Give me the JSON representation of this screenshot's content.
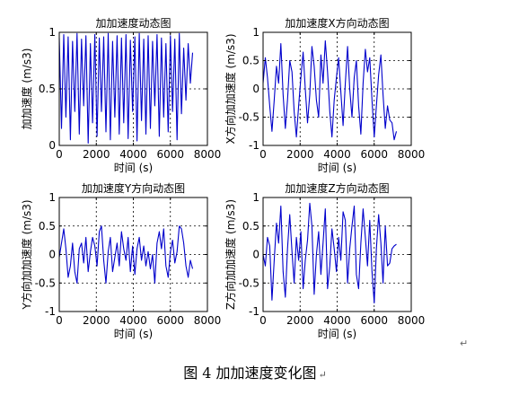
{
  "caption": {
    "text": "图 4  加加速度变化图",
    "return_mark": "↵"
  },
  "margin_mark": "↵",
  "chart_data": [
    {
      "type": "line",
      "title": "加加速度动态图",
      "xlabel": "时间 (s)",
      "ylabel": "加加速度 (m/s3)",
      "xlim": [
        0,
        8000
      ],
      "ylim": [
        0,
        1
      ],
      "xticks": [
        0,
        2000,
        4000,
        6000,
        8000
      ],
      "yticks": [
        0,
        0.5,
        1
      ],
      "ytick_labels": [
        "0",
        "0.5",
        "1"
      ],
      "grid": true,
      "color": "#0000cc",
      "x": [
        0,
        120,
        240,
        360,
        480,
        600,
        720,
        840,
        960,
        1080,
        1200,
        1320,
        1440,
        1560,
        1680,
        1800,
        1920,
        2040,
        2160,
        2280,
        2400,
        2520,
        2640,
        2760,
        2880,
        3000,
        3120,
        3240,
        3360,
        3480,
        3600,
        3720,
        3840,
        3960,
        4080,
        4200,
        4320,
        4440,
        4560,
        4680,
        4800,
        4920,
        5040,
        5160,
        5280,
        5400,
        5520,
        5640,
        5760,
        5880,
        6000,
        6120,
        6240,
        6360,
        6480,
        6600,
        6720,
        6840,
        6960,
        7080,
        7200
      ],
      "y": [
        0.95,
        0.15,
        0.98,
        0.25,
        0.96,
        0.05,
        0.92,
        0.3,
        0.99,
        0.1,
        0.94,
        0.35,
        0.97,
        0.02,
        0.9,
        0.2,
        0.98,
        0.08,
        0.95,
        0.3,
        0.96,
        0.12,
        0.99,
        0.05,
        0.92,
        0.25,
        0.97,
        0.1,
        0.95,
        0.2,
        0.98,
        0.06,
        0.93,
        0.3,
        0.96,
        0.04,
        0.99,
        0.22,
        0.94,
        0.1,
        0.97,
        0.15,
        0.92,
        0.35,
        0.98,
        0.08,
        0.95,
        0.25,
        0.9,
        0.12,
        0.97,
        0.3,
        0.94,
        0.05,
        0.99,
        0.28,
        0.86,
        0.4,
        0.9,
        0.55,
        0.82
      ]
    },
    {
      "type": "line",
      "title": "加加速度X方向动态图",
      "xlabel": "时间 (s)",
      "ylabel": "X方向加加速度 (m/s3)",
      "xlim": [
        0,
        8000
      ],
      "ylim": [
        -1,
        1
      ],
      "xticks": [
        0,
        2000,
        4000,
        6000,
        8000
      ],
      "yticks": [
        -1,
        -0.5,
        0,
        0.5,
        1
      ],
      "ytick_labels": [
        "-1",
        "-0.5",
        "0",
        "0.5",
        "1"
      ],
      "grid": true,
      "color": "#0000cc",
      "x": [
        0,
        120,
        240,
        360,
        480,
        600,
        720,
        840,
        960,
        1080,
        1200,
        1320,
        1440,
        1560,
        1680,
        1800,
        1920,
        2040,
        2160,
        2280,
        2400,
        2520,
        2640,
        2760,
        2880,
        3000,
        3120,
        3240,
        3360,
        3480,
        3600,
        3720,
        3840,
        3960,
        4080,
        4200,
        4320,
        4440,
        4560,
        4680,
        4800,
        4920,
        5040,
        5160,
        5280,
        5400,
        5520,
        5640,
        5760,
        5880,
        6000,
        6120,
        6240,
        6360,
        6480,
        6600,
        6720,
        6840,
        6960,
        7080,
        7200
      ],
      "y": [
        0.1,
        0.55,
        0.2,
        -0.3,
        -0.75,
        -0.2,
        0.4,
        0.1,
        0.8,
        -0.1,
        -0.7,
        -0.2,
        0.5,
        0.3,
        -0.4,
        -0.85,
        -0.3,
        0.2,
        0.65,
        0.0,
        -0.6,
        -0.1,
        0.75,
        0.4,
        -0.2,
        -0.5,
        0.6,
        0.1,
        0.85,
        0.3,
        -0.4,
        -0.85,
        -0.2,
        0.2,
        0.55,
        -0.05,
        -0.65,
        0.1,
        0.75,
        0.0,
        -0.5,
        0.2,
        0.5,
        -0.3,
        -0.8,
        0.1,
        0.7,
        0.3,
        0.55,
        -0.2,
        -0.85,
        -0.3,
        0.25,
        0.6,
        -0.1,
        -0.7,
        -0.3,
        -0.55,
        -0.6,
        -0.9,
        -0.75
      ]
    },
    {
      "type": "line",
      "title": "加加速度Y方向动态图",
      "xlabel": "时间 (s)",
      "ylabel": "Y方向加加速度 (m/s3)",
      "xlim": [
        0,
        8000
      ],
      "ylim": [
        -1,
        1
      ],
      "xticks": [
        0,
        2000,
        4000,
        6000,
        8000
      ],
      "yticks": [
        -1,
        -0.5,
        0,
        0.5,
        1
      ],
      "ytick_labels": [
        "-1",
        "-0.5",
        "0",
        "0.5",
        "1"
      ],
      "grid": true,
      "color": "#0000cc",
      "x": [
        0,
        120,
        240,
        360,
        480,
        600,
        720,
        840,
        960,
        1080,
        1200,
        1320,
        1440,
        1560,
        1680,
        1800,
        1920,
        2040,
        2160,
        2280,
        2400,
        2520,
        2640,
        2760,
        2880,
        3000,
        3120,
        3240,
        3360,
        3480,
        3600,
        3720,
        3840,
        3960,
        4080,
        4200,
        4320,
        4440,
        4560,
        4680,
        4800,
        4920,
        5040,
        5160,
        5280,
        5400,
        5520,
        5640,
        5760,
        5880,
        6000,
        6120,
        6240,
        6360,
        6480,
        6600,
        6720,
        6840,
        6960,
        7080,
        7200
      ],
      "y": [
        -0.05,
        0.2,
        0.45,
        0.1,
        -0.4,
        -0.2,
        0.2,
        -0.3,
        -0.5,
        0.1,
        0.2,
        -0.15,
        0.3,
        -0.3,
        0.05,
        0.3,
        0.15,
        -0.2,
        0.4,
        0.5,
        -0.1,
        -0.5,
        0.05,
        0.3,
        -0.3,
        -0.05,
        0.2,
        -0.2,
        0.4,
        0.1,
        -0.1,
        0.3,
        -0.3,
        0.15,
        -0.35,
        0.1,
        0.3,
        -0.1,
        0.15,
        -0.2,
        0.05,
        -0.25,
        0.0,
        -0.5,
        0.2,
        0.4,
        0.1,
        0.45,
        -0.2,
        -0.4,
        0.05,
        0.25,
        -0.15,
        0.05,
        0.5,
        0.45,
        0.2,
        -0.2,
        -0.4,
        -0.1,
        -0.25
      ]
    },
    {
      "type": "line",
      "title": "加加速度Z方向动态图",
      "xlabel": "时间 (s)",
      "ylabel": "Z方向加加速度 (m/s3)",
      "xlim": [
        0,
        8000
      ],
      "ylim": [
        -1,
        1
      ],
      "xticks": [
        0,
        2000,
        4000,
        6000,
        8000
      ],
      "yticks": [
        -1,
        -0.5,
        0,
        0.5,
        1
      ],
      "ytick_labels": [
        "-1",
        "-0.5",
        "0",
        "0.5",
        "1"
      ],
      "grid": true,
      "color": "#0000cc",
      "x": [
        0,
        120,
        240,
        360,
        480,
        600,
        720,
        840,
        960,
        1080,
        1200,
        1320,
        1440,
        1560,
        1680,
        1800,
        1920,
        2040,
        2160,
        2280,
        2400,
        2520,
        2640,
        2760,
        2880,
        3000,
        3120,
        3240,
        3360,
        3480,
        3600,
        3720,
        3840,
        3960,
        4080,
        4200,
        4320,
        4440,
        4560,
        4680,
        4800,
        4920,
        5040,
        5160,
        5280,
        5400,
        5520,
        5640,
        5760,
        5880,
        6000,
        6120,
        6240,
        6360,
        6480,
        6600,
        6720,
        6840,
        6960,
        7080,
        7200
      ],
      "y": [
        0.0,
        -0.2,
        0.3,
        0.15,
        -0.8,
        -0.1,
        0.55,
        0.2,
        0.85,
        -0.3,
        -0.75,
        0.1,
        0.7,
        0.05,
        -0.5,
        0.3,
        -0.1,
        0.4,
        -0.6,
        -0.1,
        0.25,
        0.9,
        0.5,
        -0.7,
        0.0,
        0.4,
        -0.35,
        0.2,
        0.8,
        -0.6,
        -0.2,
        0.45,
        0.1,
        -0.3,
        0.3,
        -0.1,
        0.75,
        0.6,
        -0.5,
        0.1,
        0.5,
        0.85,
        -0.35,
        -0.6,
        0.2,
        0.8,
        0.3,
        -0.2,
        0.6,
        -0.3,
        -0.85,
        0.1,
        0.7,
        0.2,
        -0.5,
        0.5,
        -0.2,
        -0.15,
        0.1,
        0.15,
        0.18
      ]
    }
  ]
}
